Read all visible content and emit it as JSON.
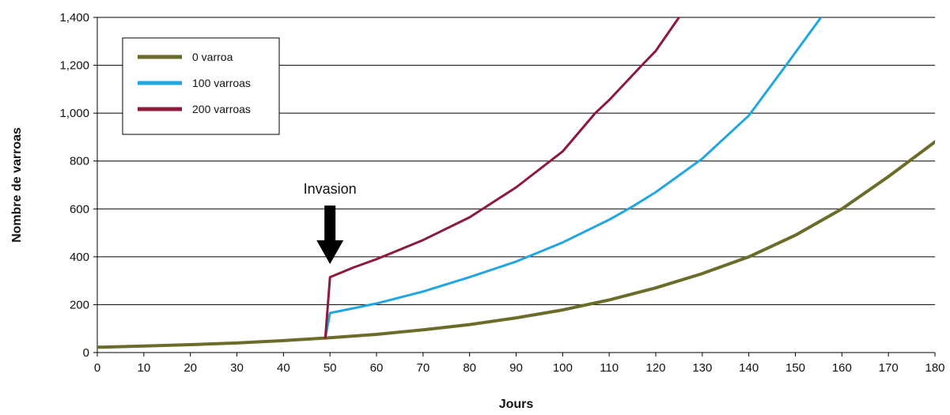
{
  "chart_data": {
    "type": "line",
    "title": "",
    "xlabel": "Jours",
    "ylabel": "Nombre de varroas",
    "xlim": [
      0,
      180
    ],
    "ylim": [
      0,
      1400
    ],
    "x_ticks": [
      0,
      10,
      20,
      30,
      40,
      50,
      60,
      70,
      80,
      90,
      100,
      110,
      120,
      130,
      140,
      150,
      160,
      170,
      180
    ],
    "y_ticks": [
      0,
      200,
      400,
      600,
      800,
      1000,
      1200,
      1400
    ],
    "y_tick_labels": [
      "0",
      "200",
      "400",
      "600",
      "800",
      "1,000",
      "1,200",
      "1,400"
    ],
    "grid": "horizontal",
    "legend_position": "top-left",
    "series": [
      {
        "name": "0 varroa",
        "color": "#6b6b2a",
        "x": [
          0,
          10,
          20,
          30,
          40,
          50,
          60,
          70,
          80,
          90,
          100,
          110,
          120,
          130,
          140,
          150,
          160,
          170,
          180
        ],
        "y": [
          22,
          27,
          33,
          40,
          50,
          62,
          76,
          95,
          117,
          145,
          178,
          220,
          270,
          330,
          400,
          490,
          600,
          735,
          880
        ]
      },
      {
        "name": "100 varroas",
        "color": "#22a6e0",
        "x": [
          49,
          50,
          55,
          60,
          70,
          80,
          90,
          100,
          110,
          115,
          120,
          130,
          140,
          148,
          155.5
        ],
        "y": [
          62,
          165,
          185,
          205,
          255,
          315,
          380,
          460,
          555,
          610,
          670,
          810,
          990,
          1200,
          1400
        ]
      },
      {
        "name": "200 varroas",
        "color": "#8c1a3a",
        "x": [
          49,
          50,
          55,
          60,
          70,
          80,
          90,
          100,
          107,
          110,
          117,
          120,
          125
        ],
        "y": [
          62,
          315,
          355,
          390,
          470,
          565,
          690,
          840,
          1000,
          1055,
          1200,
          1260,
          1400
        ]
      }
    ],
    "annotations": [
      {
        "text": "Invasion",
        "x": 50,
        "arrow": "down"
      }
    ]
  }
}
